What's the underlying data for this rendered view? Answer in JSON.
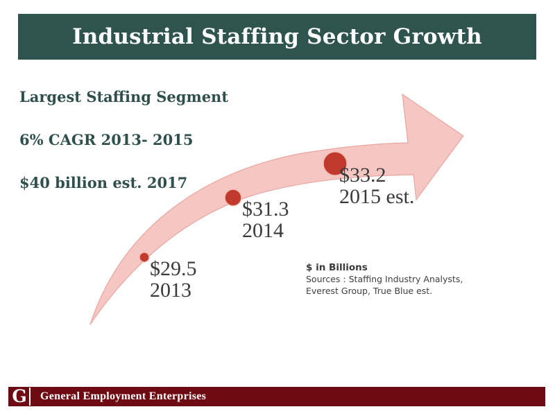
{
  "colors": {
    "title_bar": "#2f5450",
    "bullet_text": "#2f4f4c",
    "arrow_fill": "#f6c6c2",
    "arrow_stroke": "#e8a6a0",
    "dot": "#c0392b",
    "footer_bar": "#6e0b12"
  },
  "title": "Industrial Staffing Sector Growth",
  "bullets": [
    "Largest Staffing Segment",
    "6% CAGR 2013- 2015",
    "$40 billion est. 2017"
  ],
  "legend": {
    "title": "$ in Billions",
    "sources_line1": "Sources : Staffing Industry Analysts,",
    "sources_line2": "Everest Group, True Blue est."
  },
  "chart_data": {
    "type": "scatter",
    "unit": "$ in Billions",
    "points": [
      {
        "year": "2013",
        "value": 29.5,
        "label": "$29.5",
        "year_label": "2013"
      },
      {
        "year": "2014",
        "value": 31.3,
        "label": "$31.3",
        "year_label": "2014"
      },
      {
        "year": "2015",
        "value": 33.2,
        "label": "$33.2",
        "year_label": "2015 est."
      }
    ]
  },
  "footer": {
    "logo_glyph": "G",
    "company": "General Employment  Enterprises"
  }
}
